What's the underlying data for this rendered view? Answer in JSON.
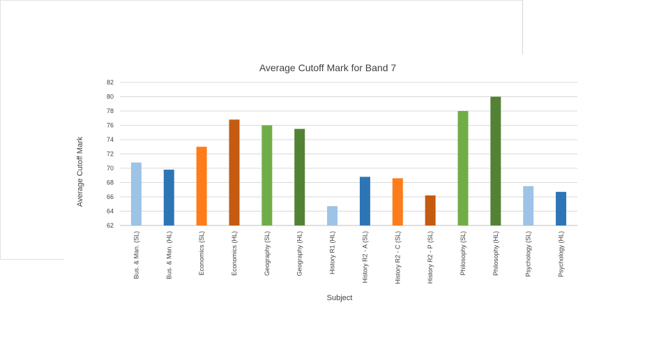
{
  "chart_data": {
    "type": "bar",
    "title": "Average Cutoff Mark for Band 7",
    "xlabel": "Subject",
    "ylabel": "Average Cutoff Mark",
    "ylim": [
      62,
      82
    ],
    "ytick_step": 2,
    "grid": true,
    "legend": "none",
    "categories": [
      "Bus. & Man. (SL)",
      "Bus. & Man. (HL)",
      "Economics (SL)",
      "Economics (HL)",
      "Geography (SL)",
      "Geography (HL)",
      "History R1 (HL)",
      "History R2 - A (SL)",
      "History R2 - C (SL)",
      "History R2 - P (SL)",
      "Philosophy (SL)",
      "Philosophy (HL)",
      "Psychology (SL)",
      "Psychology (HL)"
    ],
    "values": [
      70.8,
      69.8,
      73.0,
      76.8,
      76.0,
      75.5,
      64.7,
      68.8,
      68.6,
      66.2,
      78.0,
      80.0,
      67.5,
      66.7
    ],
    "colors": [
      "#9dc3e6",
      "#2e75b6",
      "#ff7c1a",
      "#c55a11",
      "#70ad47",
      "#548235",
      "#9dc3e6",
      "#2e75b6",
      "#ff7c1a",
      "#c55a11",
      "#70ad47",
      "#548235",
      "#9dc3e6",
      "#2e75b6"
    ]
  }
}
